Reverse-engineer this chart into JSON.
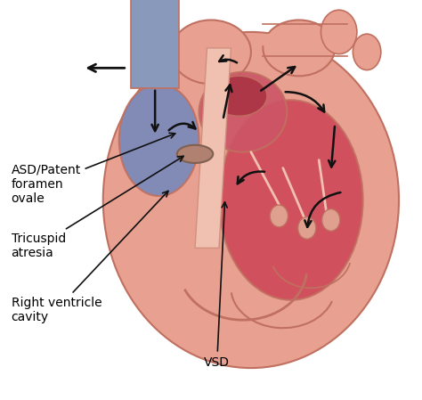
{
  "background_color": "#ffffff",
  "labels": {
    "asd": "ASD/Patent\nforamen\novale",
    "tricuspid": "Tricuspid\natresia",
    "right_ventricle": "Right ventricle\ncavity",
    "vsd": "VSD"
  },
  "heart_colors": {
    "outer_body": "#e8a090",
    "blue_fill": "#8899bb",
    "red_fill": "#cc4455",
    "pink_fill": "#e0a0a0",
    "vessel_edge": "#c07060",
    "inner_light": "#f0c0b0"
  },
  "font_size": 10,
  "figsize": [
    4.74,
    4.49
  ],
  "dpi": 100
}
